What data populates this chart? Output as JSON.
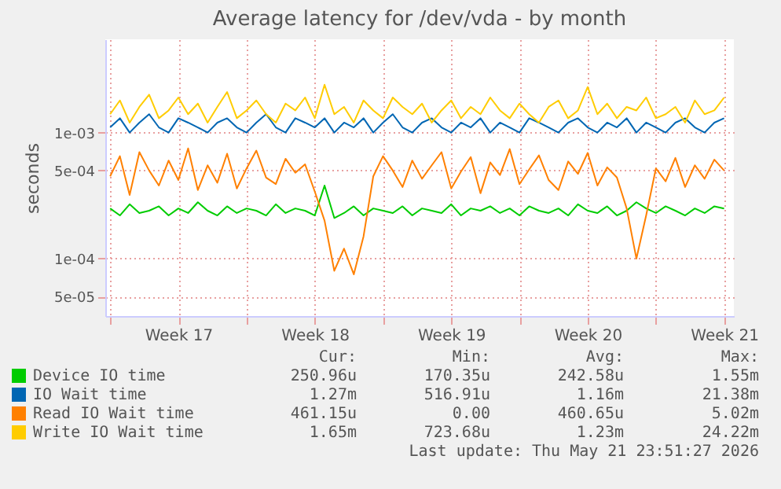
{
  "chart_data": {
    "type": "line",
    "title": "Average latency for /dev/vda - by month",
    "ylabel": "seconds",
    "log": true,
    "grid": true,
    "legend": "bottom",
    "marker": "none",
    "line_style": "solid",
    "xlim": [
      "2026-04-19T18:00",
      "2026-05-22T00:00"
    ],
    "xticks": [
      {
        "value": "2026-04-20",
        "label": null
      },
      {
        "value": "2026-04-23T12:00",
        "label": "Week 17"
      },
      {
        "value": "2026-04-27",
        "label": null
      },
      {
        "value": "2026-04-30T12:00",
        "label": "Week 18"
      },
      {
        "value": "2026-05-04",
        "label": null
      },
      {
        "value": "2026-05-07T12:00",
        "label": "Week 19"
      },
      {
        "value": "2026-05-11",
        "label": null
      },
      {
        "value": "2026-05-14T12:00",
        "label": "Week 20"
      },
      {
        "value": "2026-05-18",
        "label": null
      },
      {
        "value": "2026-05-21T12:00",
        "label": "Week 21"
      }
    ],
    "ylim": [
      3.5e-05,
      0.0055
    ],
    "yticks": [
      {
        "value": 5e-05,
        "label": "5e-05"
      },
      {
        "value": 0.0001,
        "label": "1e-04"
      },
      {
        "value": 0.0005,
        "label": "5e-04"
      },
      {
        "value": 0.001,
        "label": "1e-03"
      }
    ],
    "x": [
      "2026-04-20T00:00",
      "2026-04-20T12:00",
      "2026-04-21T00:00",
      "2026-04-21T12:00",
      "2026-04-22T00:00",
      "2026-04-22T12:00",
      "2026-04-23T00:00",
      "2026-04-23T12:00",
      "2026-04-24T00:00",
      "2026-04-24T12:00",
      "2026-04-25T00:00",
      "2026-04-25T12:00",
      "2026-04-26T00:00",
      "2026-04-26T12:00",
      "2026-04-27T00:00",
      "2026-04-27T12:00",
      "2026-04-28T00:00",
      "2026-04-28T12:00",
      "2026-04-29T00:00",
      "2026-04-29T12:00",
      "2026-04-30T00:00",
      "2026-04-30T12:00",
      "2026-05-01T00:00",
      "2026-05-01T12:00",
      "2026-05-02T00:00",
      "2026-05-02T12:00",
      "2026-05-03T00:00",
      "2026-05-03T12:00",
      "2026-05-04T00:00",
      "2026-05-04T12:00",
      "2026-05-05T00:00",
      "2026-05-05T12:00",
      "2026-05-06T00:00",
      "2026-05-06T12:00",
      "2026-05-07T00:00",
      "2026-05-07T12:00",
      "2026-05-08T00:00",
      "2026-05-08T12:00",
      "2026-05-09T00:00",
      "2026-05-09T12:00",
      "2026-05-10T00:00",
      "2026-05-10T12:00",
      "2026-05-11T00:00",
      "2026-05-11T12:00",
      "2026-05-12T00:00",
      "2026-05-12T12:00",
      "2026-05-13T00:00",
      "2026-05-13T12:00",
      "2026-05-14T00:00",
      "2026-05-14T12:00",
      "2026-05-15T00:00",
      "2026-05-15T12:00",
      "2026-05-16T00:00",
      "2026-05-16T12:00",
      "2026-05-17T00:00",
      "2026-05-17T12:00",
      "2026-05-18T00:00",
      "2026-05-18T12:00",
      "2026-05-19T00:00",
      "2026-05-19T12:00",
      "2026-05-20T00:00",
      "2026-05-20T12:00",
      "2026-05-21T00:00",
      "2026-05-21T12:00"
    ],
    "series": [
      {
        "name": "Device IO time",
        "color": "#00cc00",
        "values": [
          0.00025,
          0.00022,
          0.00027,
          0.00023,
          0.00024,
          0.00026,
          0.00022,
          0.00025,
          0.00023,
          0.00028,
          0.00024,
          0.00022,
          0.00026,
          0.00023,
          0.00025,
          0.00024,
          0.00022,
          0.00027,
          0.00023,
          0.00025,
          0.00024,
          0.00022,
          0.00038,
          0.00021,
          0.00023,
          0.00026,
          0.00022,
          0.00025,
          0.00024,
          0.00023,
          0.00026,
          0.00022,
          0.00025,
          0.00024,
          0.00023,
          0.00027,
          0.00022,
          0.00025,
          0.00024,
          0.00026,
          0.00023,
          0.00025,
          0.00022,
          0.00026,
          0.00024,
          0.00023,
          0.00025,
          0.00022,
          0.00027,
          0.00024,
          0.00023,
          0.00026,
          0.00022,
          0.00024,
          0.00028,
          0.00025,
          0.00023,
          0.00026,
          0.00024,
          0.00022,
          0.00025,
          0.00023,
          0.00026,
          0.00025
        ]
      },
      {
        "name": "IO Wait time",
        "color": "#0066b3",
        "values": [
          0.0011,
          0.0013,
          0.001,
          0.0012,
          0.0014,
          0.0011,
          0.001,
          0.0013,
          0.0012,
          0.0011,
          0.001,
          0.0012,
          0.0013,
          0.0011,
          0.001,
          0.0012,
          0.0014,
          0.0011,
          0.001,
          0.0013,
          0.0012,
          0.0011,
          0.0013,
          0.001,
          0.0012,
          0.0011,
          0.0013,
          0.001,
          0.0012,
          0.0014,
          0.0011,
          0.001,
          0.0012,
          0.0013,
          0.0011,
          0.001,
          0.0012,
          0.0011,
          0.0013,
          0.001,
          0.0012,
          0.0011,
          0.001,
          0.0013,
          0.0012,
          0.0011,
          0.001,
          0.0012,
          0.0013,
          0.0011,
          0.001,
          0.0012,
          0.0011,
          0.0013,
          0.001,
          0.0012,
          0.0011,
          0.001,
          0.0012,
          0.0013,
          0.0011,
          0.001,
          0.0012,
          0.0013
        ]
      },
      {
        "name": "Read IO Wait time",
        "color": "#ff8000",
        "values": [
          0.00045,
          0.00065,
          0.00032,
          0.0007,
          0.0005,
          0.00038,
          0.0006,
          0.00042,
          0.00075,
          0.00035,
          0.00055,
          0.0004,
          0.00068,
          0.00036,
          0.00052,
          0.00072,
          0.00044,
          0.00039,
          0.00062,
          0.00048,
          0.00056,
          0.00034,
          0.0002,
          8e-05,
          0.00012,
          7.5e-05,
          0.00015,
          0.00045,
          0.00065,
          0.0005,
          0.00037,
          0.0006,
          0.00043,
          0.00055,
          0.0007,
          0.00036,
          0.00049,
          0.00064,
          0.00033,
          0.00058,
          0.00046,
          0.00074,
          0.00039,
          0.00051,
          0.00066,
          0.00042,
          0.00035,
          0.00059,
          0.00047,
          0.00069,
          0.00038,
          0.00053,
          0.00044,
          0.00025,
          0.0001,
          0.00022,
          0.00052,
          0.00041,
          0.00063,
          0.00037,
          0.00055,
          0.00043,
          0.00061,
          0.0005
        ]
      },
      {
        "name": "Write IO Wait time",
        "color": "#ffcc00",
        "values": [
          0.0014,
          0.0018,
          0.0012,
          0.0016,
          0.002,
          0.0013,
          0.0015,
          0.0019,
          0.0014,
          0.0017,
          0.0012,
          0.0016,
          0.0021,
          0.0013,
          0.0015,
          0.0018,
          0.0014,
          0.0012,
          0.0017,
          0.0015,
          0.0019,
          0.0013,
          0.0024,
          0.0014,
          0.0016,
          0.0012,
          0.0018,
          0.0015,
          0.0013,
          0.0019,
          0.0016,
          0.0014,
          0.0017,
          0.0012,
          0.0015,
          0.0018,
          0.0013,
          0.0016,
          0.0014,
          0.0019,
          0.0015,
          0.0013,
          0.0017,
          0.0014,
          0.0012,
          0.0016,
          0.0018,
          0.0013,
          0.0015,
          0.0023,
          0.0014,
          0.0017,
          0.0013,
          0.0016,
          0.0015,
          0.0019,
          0.0013,
          0.0014,
          0.0016,
          0.0012,
          0.0018,
          0.0014,
          0.0015,
          0.0019
        ]
      }
    ],
    "annotations": [
      "Cur:",
      "Min:",
      "Avg:",
      "Max:",
      "250.96u",
      "170.35u",
      "242.58u",
      "1.55m",
      "1.27m",
      "516.91u",
      "1.16m",
      "21.38m",
      "461.15u",
      "0.00",
      "460.65u",
      "5.02m",
      "1.65m",
      "723.68u",
      "1.23m",
      "24.22m",
      "Last update: Thu May 21 23:51:27 2026"
    ]
  }
}
